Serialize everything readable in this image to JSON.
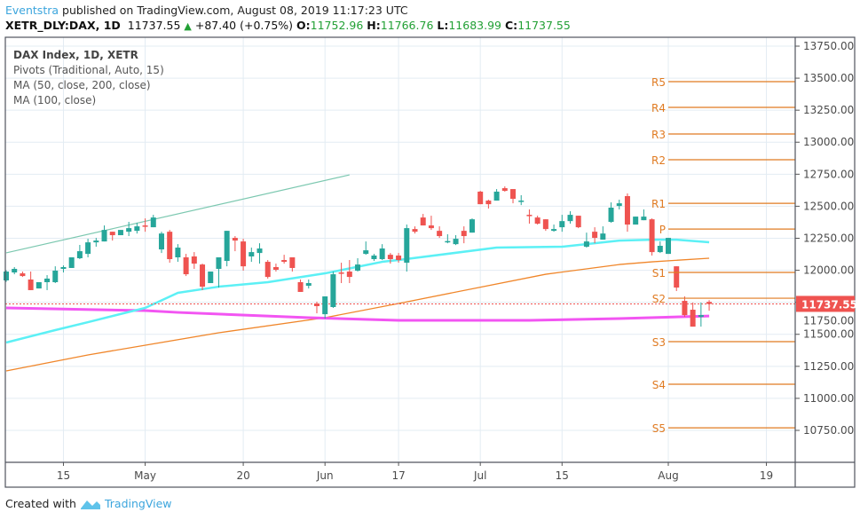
{
  "header": {
    "author": "Eventstra",
    "published": "published on TradingView.com, August 08, 2019 11:17:23 UTC",
    "symbol": "XETR_DLY:DAX, 1D",
    "last": "11737.55",
    "change": "+87.40 (+0.75%)",
    "o_label": "O:",
    "o": "11752.96",
    "h_label": "H:",
    "h": "11766.76",
    "l_label": "L:",
    "l": "11683.99",
    "c_label": "C:",
    "c": "11737.55"
  },
  "legend": {
    "title": "DAX Index, 1D, XETR",
    "pivots": "Pivots (Traditional, Auto, 15)",
    "ma1": "MA (50, close, 200, close)",
    "ma2": "MA (100, close)"
  },
  "footer": {
    "created": "Created with",
    "brand": "TradingView"
  },
  "colors": {
    "up": "#26a69a",
    "down": "#ef5350",
    "ma50": "#5cf0f5",
    "ma200": "#f0862a",
    "ma100": "#f255f2",
    "pivot": "#e07b22",
    "trend": "#7cc8b0",
    "grid": "#e3ecf3"
  },
  "chart_data": {
    "type": "candlestick",
    "title": "DAX Index, 1D, XETR",
    "ylim": [
      10500,
      13830
    ],
    "y_ticks": [
      "13750.00",
      "13500.00",
      "13250.00",
      "13000.00",
      "12750.00",
      "12500.00",
      "12250.00",
      "12000.00",
      "11750.00",
      "11500.00",
      "11250.00",
      "11000.00",
      "10750.00"
    ],
    "y_tick_values": [
      13750,
      13500,
      13250,
      13000,
      12750,
      12500,
      12250,
      12000,
      11750,
      11500,
      11250,
      11000,
      10750
    ],
    "x_ticks": [
      {
        "label": "15",
        "bar": 7
      },
      {
        "label": "May",
        "bar": 17
      },
      {
        "label": "20",
        "bar": 29
      },
      {
        "label": "Jun",
        "bar": 39
      },
      {
        "label": "17",
        "bar": 48
      },
      {
        "label": "Jul",
        "bar": 58
      },
      {
        "label": "15",
        "bar": 68
      },
      {
        "label": "Aug",
        "bar": 81
      },
      {
        "label": "19",
        "bar": 93
      }
    ],
    "last_price": {
      "value": 11737.55,
      "label": "11737.55"
    },
    "ohlc": [
      [
        11921,
        12000,
        11910,
        11990
      ],
      [
        11983,
        12025,
        11969,
        12011
      ],
      [
        11976,
        11990,
        11948,
        11955
      ],
      [
        11928,
        11990,
        11845,
        11845
      ],
      [
        11858,
        11907,
        11858,
        11907
      ],
      [
        11907,
        11962,
        11845,
        11935
      ],
      [
        11907,
        12031,
        11900,
        11997
      ],
      [
        12011,
        12038,
        11983,
        12025
      ],
      [
        12018,
        12101,
        12018,
        12101
      ],
      [
        12094,
        12198,
        12087,
        12149
      ],
      [
        12128,
        12246,
        12101,
        12218
      ],
      [
        12218,
        12253,
        12184,
        12232
      ],
      [
        12225,
        12350,
        12225,
        12315
      ],
      [
        12301,
        12301,
        12232,
        12274
      ],
      [
        12274,
        12315,
        12274,
        12315
      ],
      [
        12301,
        12378,
        12267,
        12329
      ],
      [
        12308,
        12371,
        12287,
        12343
      ],
      [
        12350,
        12405,
        12301,
        12343
      ],
      [
        12336,
        12433,
        12336,
        12412
      ],
      [
        12163,
        12301,
        12135,
        12287
      ],
      [
        12301,
        12315,
        12059,
        12087
      ],
      [
        12101,
        12204,
        12066,
        12177
      ],
      [
        12101,
        12128,
        11955,
        11969
      ],
      [
        12108,
        12142,
        12011,
        12052
      ],
      [
        12045,
        12052,
        11845,
        11872
      ],
      [
        11900,
        11990,
        11900,
        11990
      ],
      [
        12011,
        12101,
        11865,
        12101
      ],
      [
        12073,
        12308,
        12031,
        12308
      ],
      [
        12253,
        12267,
        12149,
        12232
      ],
      [
        12225,
        12246,
        11997,
        12031
      ],
      [
        12108,
        12177,
        12066,
        12142
      ],
      [
        12135,
        12211,
        12052,
        12170
      ],
      [
        12066,
        12080,
        11935,
        11948
      ],
      [
        12025,
        12052,
        11990,
        12004
      ],
      [
        12080,
        12121,
        12052,
        12066
      ],
      [
        12101,
        12101,
        11990,
        12018
      ],
      [
        11907,
        11928,
        11831,
        11831
      ],
      [
        11879,
        11928,
        11858,
        11900
      ],
      [
        11741,
        11755,
        11664,
        11720
      ],
      [
        11657,
        11796,
        11623,
        11796
      ],
      [
        11713,
        11990,
        11706,
        11969
      ],
      [
        11983,
        12059,
        11900,
        11976
      ],
      [
        11990,
        12080,
        11900,
        11948
      ],
      [
        11997,
        12094,
        11990,
        12045
      ],
      [
        12128,
        12225,
        12121,
        12156
      ],
      [
        12087,
        12128,
        12073,
        12115
      ],
      [
        12087,
        12204,
        12080,
        12170
      ],
      [
        12121,
        12135,
        12052,
        12087
      ],
      [
        12115,
        12135,
        12059,
        12080
      ],
      [
        12059,
        12357,
        11990,
        12329
      ],
      [
        12322,
        12343,
        12287,
        12301
      ],
      [
        12412,
        12440,
        12350,
        12350
      ],
      [
        12350,
        12426,
        12315,
        12329
      ],
      [
        12308,
        12343,
        12253,
        12267
      ],
      [
        12222,
        12281,
        12211,
        12228
      ],
      [
        12204,
        12274,
        12197,
        12246
      ],
      [
        12308,
        12343,
        12211,
        12267
      ],
      [
        12294,
        12405,
        12294,
        12398
      ],
      [
        12614,
        12620,
        12516,
        12516
      ],
      [
        12544,
        12551,
        12482,
        12516
      ],
      [
        12544,
        12634,
        12544,
        12614
      ],
      [
        12641,
        12655,
        12614,
        12620
      ],
      [
        12634,
        12634,
        12523,
        12558
      ],
      [
        12537,
        12586,
        12509,
        12544
      ],
      [
        12433,
        12475,
        12364,
        12426
      ],
      [
        12412,
        12426,
        12357,
        12364
      ],
      [
        12398,
        12398,
        12308,
        12322
      ],
      [
        12308,
        12357,
        12301,
        12322
      ],
      [
        12336,
        12433,
        12301,
        12384
      ],
      [
        12384,
        12461,
        12364,
        12433
      ],
      [
        12426,
        12426,
        12329,
        12336
      ],
      [
        12184,
        12294,
        12177,
        12225
      ],
      [
        12301,
        12336,
        12211,
        12253
      ],
      [
        12239,
        12343,
        12239,
        12287
      ],
      [
        12378,
        12530,
        12371,
        12489
      ],
      [
        12502,
        12551,
        12475,
        12523
      ],
      [
        12579,
        12600,
        12301,
        12357
      ],
      [
        12357,
        12419,
        12357,
        12419
      ],
      [
        12391,
        12475,
        12391,
        12419
      ],
      [
        12398,
        12405,
        12115,
        12142
      ],
      [
        12142,
        12225,
        12135,
        12191
      ],
      [
        12128,
        12253,
        12128,
        12253
      ],
      [
        12031,
        12031,
        11838,
        11865
      ],
      [
        11761,
        11796,
        11636,
        11650
      ],
      [
        11692,
        11748,
        11560,
        11560
      ],
      [
        11636,
        11748,
        11560,
        11650.15
      ],
      [
        11752.96,
        11766.76,
        11683.99,
        11737.55
      ]
    ],
    "ma50": [
      [
        0,
        11436
      ],
      [
        6,
        11533
      ],
      [
        10,
        11595
      ],
      [
        17,
        11706
      ],
      [
        21,
        11824
      ],
      [
        26,
        11872
      ],
      [
        32,
        11907
      ],
      [
        39,
        11976
      ],
      [
        46,
        12066
      ],
      [
        48,
        12080
      ],
      [
        60,
        12177
      ],
      [
        68,
        12184
      ],
      [
        75,
        12232
      ],
      [
        79,
        12239
      ],
      [
        82,
        12239
      ],
      [
        86,
        12219
      ]
    ],
    "ma200": [
      [
        0,
        11214
      ],
      [
        10,
        11339
      ],
      [
        26,
        11512
      ],
      [
        39,
        11630
      ],
      [
        48,
        11741
      ],
      [
        66,
        11969
      ],
      [
        75,
        12045
      ],
      [
        79,
        12066
      ],
      [
        86,
        12094
      ]
    ],
    "ma100": [
      [
        0,
        11706
      ],
      [
        17,
        11685
      ],
      [
        21,
        11671
      ],
      [
        37,
        11630
      ],
      [
        48,
        11609
      ],
      [
        64,
        11609
      ],
      [
        75,
        11623
      ],
      [
        86,
        11643
      ]
    ],
    "trendline": [
      [
        0,
        12136
      ],
      [
        42,
        12745
      ]
    ],
    "pivots": {
      "start_bar": 81,
      "levels": [
        {
          "label": "R5",
          "value": 13473
        },
        {
          "label": "R4",
          "value": 13272
        },
        {
          "label": "R3",
          "value": 13064
        },
        {
          "label": "R2",
          "value": 12863
        },
        {
          "label": "R1",
          "value": 12523
        },
        {
          "label": "P",
          "value": 12322
        },
        {
          "label": "S1",
          "value": 11983
        },
        {
          "label": "S2",
          "value": 11782
        },
        {
          "label": "S3",
          "value": 11443
        },
        {
          "label": "S4",
          "value": 11110
        },
        {
          "label": "S5",
          "value": 10770
        }
      ]
    }
  }
}
